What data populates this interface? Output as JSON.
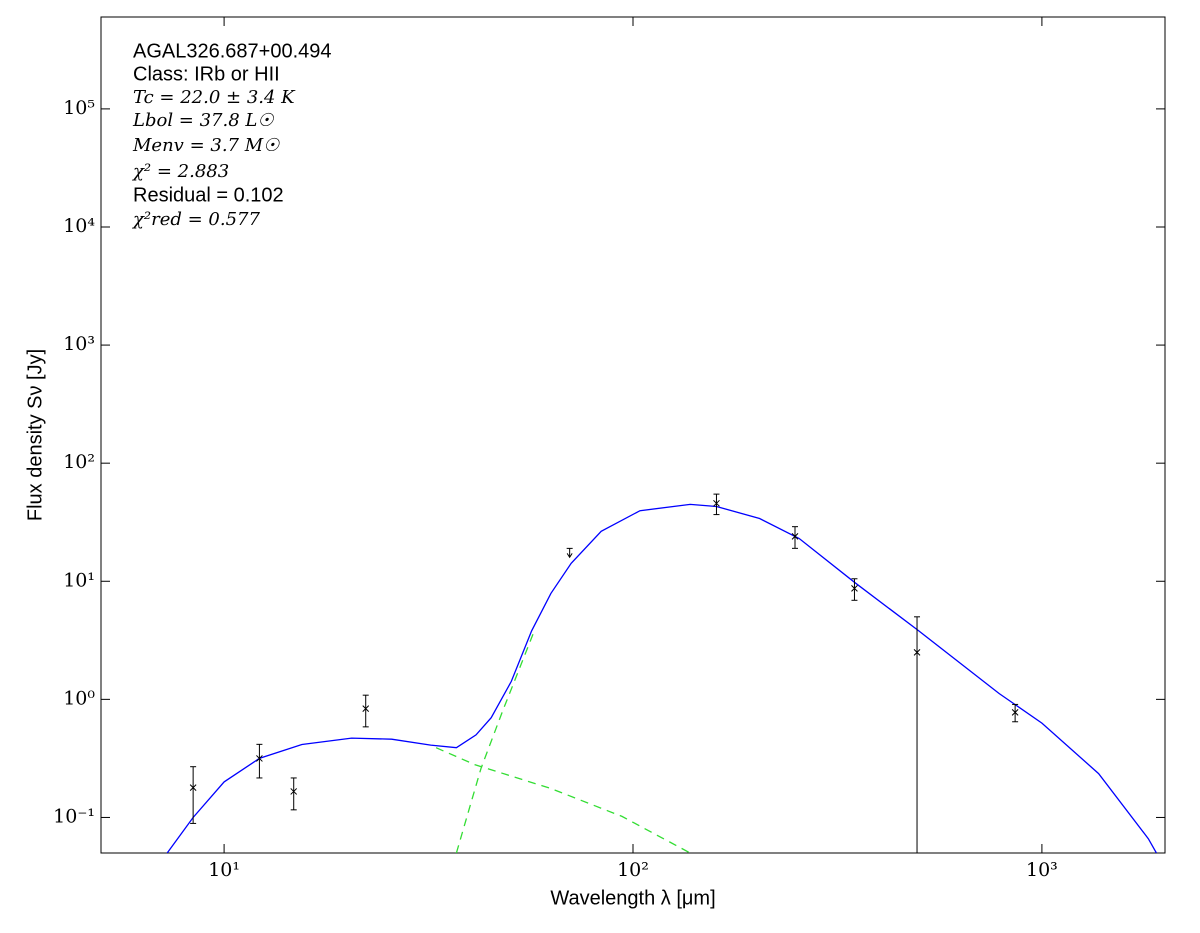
{
  "chart_data": {
    "type": "scatter",
    "xscale": "log",
    "yscale": "log",
    "x_label": "Wavelength λ [μm]",
    "y_label": "Flux density Sν [Jy]",
    "annotations": [
      "AGAL326.687+00.494",
      "Class: IRb or HII",
      "Tc = 22.0 ± 3.4 K",
      "Lbol = 37.8 L☉",
      "Menv = 3.7 M☉",
      "χ² = 2.883",
      "Residual = 0.102",
      "χ²red = 0.577"
    ],
    "xlim": [
      5,
      2000
    ],
    "ylim": [
      0.05,
      600000
    ],
    "xticks": [
      {
        "value": 10,
        "label": "10¹"
      },
      {
        "value": 100,
        "label": "10²"
      },
      {
        "value": 1000,
        "label": "10³"
      }
    ],
    "yticks": [
      {
        "value": 0.1,
        "label": "10⁻¹"
      },
      {
        "value": 1,
        "label": "10⁰"
      },
      {
        "value": 10,
        "label": "10¹"
      },
      {
        "value": 100,
        "label": "10²"
      },
      {
        "value": 1000,
        "label": "10³"
      },
      {
        "value": 10000,
        "label": "10⁴"
      },
      {
        "value": 100000,
        "label": "10⁵"
      }
    ],
    "color": "#000000",
    "x": [
      8.4,
      12.2,
      14.8,
      22.2,
      160,
      249,
      348,
      495,
      860
    ],
    "values": [
      0.179,
      0.316,
      0.166,
      0.835,
      45.7,
      24,
      8.7,
      2.5,
      0.776
    ],
    "errors": [
      0.09,
      0.1,
      0.05,
      0.25,
      9,
      5,
      1.8,
      2.5,
      0.13
    ],
    "upper_limit": {
      "x": [
        70
      ],
      "values": [
        19
      ]
    },
    "curves": [
      {
        "color": "#0000ff",
        "dashed": false,
        "x": [
          7.26,
          8.4,
          10,
          12.2,
          15.5,
          20.5,
          25.7,
          32,
          37,
          41.3,
          45,
          50.4,
          56.5,
          63,
          70.6,
          83.6,
          104,
          138,
          160,
          204,
          255,
          348,
          500,
          786,
          1000,
          1376,
          1822,
          1905
        ],
        "values": [
          0.05,
          0.1,
          0.2,
          0.316,
          0.415,
          0.47,
          0.46,
          0.41,
          0.39,
          0.5,
          0.7,
          1.42,
          3.8,
          7.9,
          14.2,
          26.5,
          39.6,
          44.8,
          43,
          34,
          23,
          9.8,
          3.8,
          1.12,
          0.63,
          0.235,
          0.066,
          0.05
        ]
      },
      {
        "color": "#33dd33",
        "dashed": true,
        "x": [
          37,
          42.5,
          48,
          53,
          57
        ],
        "values": [
          0.05,
          0.26,
          0.8,
          1.9,
          3.6
        ]
      },
      {
        "color": "#33dd33",
        "dashed": true,
        "x": [
          33,
          41,
          63,
          94,
          138
        ],
        "values": [
          0.39,
          0.28,
          0.176,
          0.102,
          0.05
        ]
      }
    ]
  }
}
